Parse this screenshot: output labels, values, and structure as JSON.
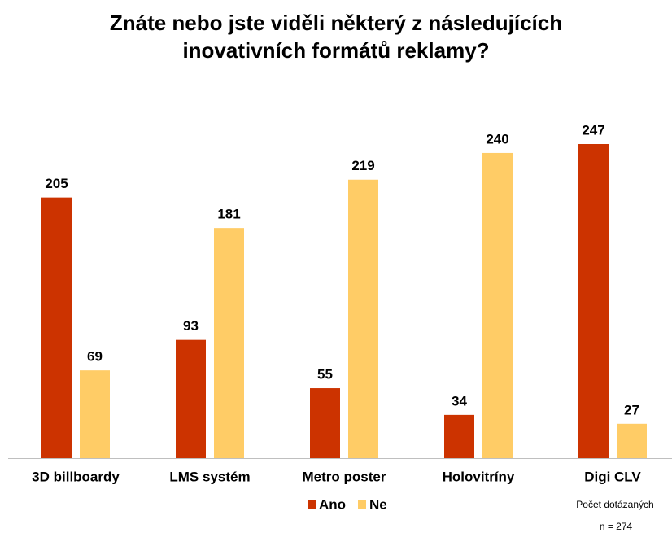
{
  "chart_data": {
    "type": "bar",
    "title": [
      "Znáte nebo jste viděli některý z následujících",
      "inovativních formátů reklamy?"
    ],
    "categories": [
      "3D billboardy",
      "LMS systém",
      "Metro poster",
      "Holovitríny",
      "Digi CLV"
    ],
    "series": [
      {
        "name": "Ano",
        "color": "#cc3300",
        "values": [
          205,
          93,
          55,
          34,
          247
        ]
      },
      {
        "name": "Ne",
        "color": "#ffcc66",
        "values": [
          69,
          181,
          219,
          240,
          27
        ]
      }
    ],
    "legend": "bottom",
    "annotations": [
      "Počet dotázaných",
      "n = 274"
    ]
  }
}
